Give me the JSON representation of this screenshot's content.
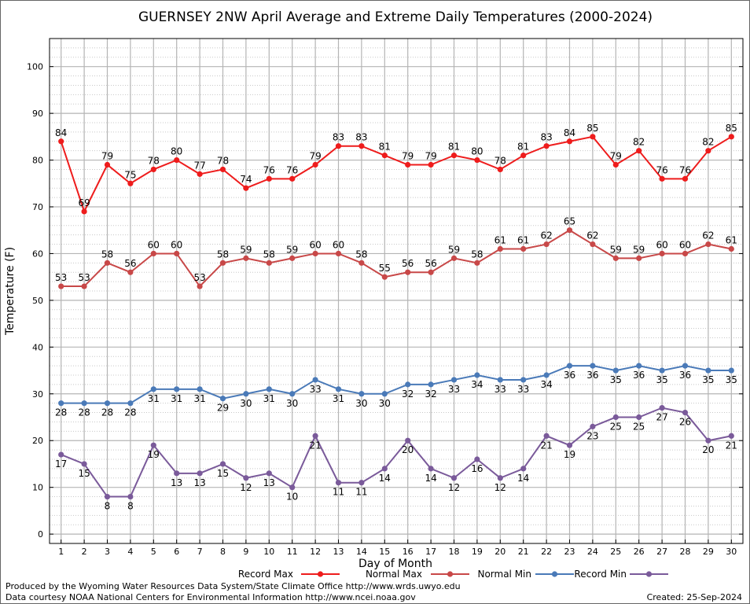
{
  "chart_data": {
    "type": "line",
    "title": "GUERNSEY 2NW April Average and Extreme Daily Temperatures (2000-2024)",
    "xlabel": "Day of Month",
    "ylabel": "Temperature (F)",
    "ylim": [
      -2,
      106
    ],
    "yticks": [
      0,
      10,
      20,
      30,
      40,
      50,
      60,
      70,
      80,
      90,
      100
    ],
    "x": [
      1,
      2,
      3,
      4,
      5,
      6,
      7,
      8,
      9,
      10,
      11,
      12,
      13,
      14,
      15,
      16,
      17,
      18,
      19,
      20,
      21,
      22,
      23,
      24,
      25,
      26,
      27,
      28,
      29,
      30
    ],
    "grid": true,
    "legend_position": "bottom",
    "series": [
      {
        "name": "Record Max",
        "color": "#ee1c1c",
        "label_position": "above",
        "values": [
          84,
          69,
          79,
          75,
          78,
          80,
          77,
          78,
          74,
          76,
          76,
          79,
          83,
          83,
          81,
          79,
          79,
          81,
          80,
          78,
          81,
          83,
          84,
          85,
          79,
          82,
          76,
          76,
          82,
          85
        ]
      },
      {
        "name": "Normal Max",
        "color": "#c84848",
        "label_position": "above",
        "values": [
          53,
          53,
          58,
          56,
          60,
          60,
          53,
          58,
          59,
          58,
          59,
          60,
          60,
          58,
          55,
          56,
          56,
          59,
          58,
          61,
          61,
          62,
          65,
          62,
          59,
          59,
          60,
          60,
          62,
          61
        ]
      },
      {
        "name": "Normal Min",
        "color": "#4a7ab8",
        "label_position": "below",
        "values": [
          28,
          28,
          28,
          28,
          31,
          31,
          31,
          29,
          30,
          31,
          30,
          33,
          31,
          30,
          30,
          32,
          32,
          33,
          34,
          33,
          33,
          34,
          36,
          36,
          35,
          36,
          35,
          36,
          35,
          35
        ]
      },
      {
        "name": "Record Min",
        "color": "#7a5a9a",
        "label_position": "below",
        "values": [
          17,
          15,
          8,
          8,
          19,
          13,
          13,
          15,
          12,
          13,
          10,
          21,
          11,
          11,
          14,
          20,
          14,
          12,
          16,
          12,
          14,
          21,
          19,
          23,
          25,
          25,
          27,
          26,
          20,
          21
        ]
      }
    ]
  },
  "footer": {
    "line1": "Produced by the Wyoming Water Resources Data System/State Climate Office http://www.wrds.uwyo.edu",
    "line2": "Data courtesy NOAA National Centers for Environmental Information http://www.ncei.noaa.gov",
    "created": "Created:  25-Sep-2024"
  }
}
